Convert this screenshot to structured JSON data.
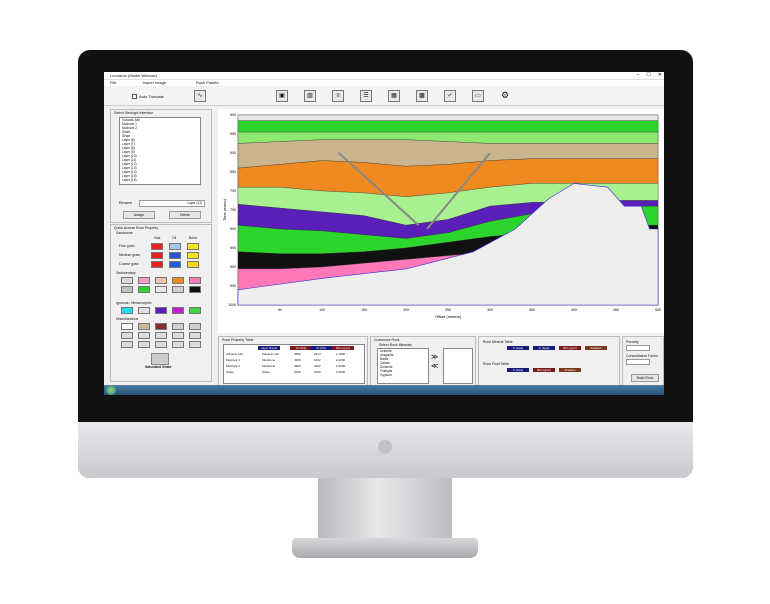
{
  "window": {
    "title": "Leonardo (Model Window)",
    "min": "–",
    "max": "☐",
    "close": "✕"
  },
  "menu": [
    "File",
    "Import Image",
    "Rock Palette"
  ],
  "toolbar": {
    "auto_truncate_label": "Auto Truncate",
    "icons": [
      "wave-icon",
      "image-icon",
      "image-edit-icon",
      "layers-icon",
      "table-icon",
      "grid-icon",
      "photo-icon",
      "chart-check-icon",
      "window-icon",
      "gear-icon"
    ]
  },
  "left_panel": {
    "interfaces_label": "Select Geologic Interface",
    "interfaces": [
      "Volcanic Ash",
      "Mudrock 1",
      "Mudrock 2",
      "Shale",
      "Shale",
      "Layer (8)",
      "Layer (7)",
      "Layer (8)",
      "Layer (9)",
      "Layer (10)",
      "Layer (11)",
      "Layer (12)",
      "Layer (13)",
      "Layer (14)",
      "Layer (15)",
      "Layer (16)",
      "Layer (17)"
    ],
    "rename_label": "Rename",
    "rename_value": "Layer (13)",
    "assign_label": "Assign",
    "delete_label": "Delete",
    "quick_access_label": "Quick Access Rock Property",
    "sandstone_label": "Sandstone",
    "col_headers": [
      "Gas",
      "Oil",
      "Brine"
    ],
    "rows": [
      {
        "label": "Fine grain",
        "colors": [
          "#e8231f",
          "#9ec8ec",
          "#f2e51e"
        ]
      },
      {
        "label": "Medium grain",
        "colors": [
          "#e8231f",
          "#2b4fd6",
          "#f2e51e"
        ]
      },
      {
        "label": "Coarse grain",
        "colors": [
          "#e8231f",
          "#1f5de0",
          "#ffd21f"
        ]
      }
    ],
    "sedimentary_label": "Sedimentary",
    "sedimentary": [
      [
        "#d9d9d9",
        "#f2a0c8",
        "#e8c8a8",
        "#f08a20",
        "#ff79b8"
      ],
      [
        "#c0c0c0",
        "#2cd52c",
        "#e8e8e8",
        "#d0d0d0",
        "#111111"
      ]
    ],
    "igneous_label": "Igneous / Metamorphic",
    "igneous": [
      [
        "#1fe0f0",
        "#e0e0e0",
        "#5a1fb8",
        "#c01fd0",
        "#38d838"
      ]
    ],
    "misc_label": "Miscellaneous",
    "misc": [
      [
        "#ffffff",
        "#c8b898",
        "#8a2a2a",
        "#d0d0d0",
        "#d0d0d0"
      ]
    ],
    "saturated_label": "Saturated Shale"
  },
  "chart_data": {
    "type": "area",
    "title": "",
    "xlabel": "Offset (meters)",
    "ylabel": "Time (msec)",
    "xlim": [
      0,
      500
    ],
    "ylim": [
      500,
      1000
    ],
    "x_ticks": [
      50,
      100,
      150,
      200,
      250,
      300,
      350,
      400,
      450,
      500
    ],
    "y_ticks": [
      500,
      550,
      600,
      650,
      700,
      750,
      800,
      850,
      900,
      950,
      1000
    ],
    "layers": [
      {
        "color": "#e8e8e8",
        "top": [
          500,
          500,
          500,
          500,
          500,
          500,
          500,
          500,
          500,
          500,
          500
        ]
      },
      {
        "color": "#2cd52c",
        "top": [
          515,
          515,
          515,
          515,
          515,
          515,
          515,
          515,
          515,
          515,
          515
        ]
      },
      {
        "color": "#8ee870",
        "top": [
          545,
          545,
          545,
          545,
          545,
          545,
          545,
          545,
          545,
          545,
          545
        ]
      },
      {
        "color": "#c9b48e",
        "top": [
          575,
          570,
          565,
          565,
          565,
          570,
          575,
          575,
          575,
          575,
          575
        ]
      },
      {
        "color": "#f08a20",
        "top": [
          640,
          630,
          620,
          625,
          635,
          630,
          620,
          615,
          615,
          615,
          615
        ]
      },
      {
        "color": "#a8f090",
        "top": [
          690,
          690,
          700,
          705,
          715,
          705,
          690,
          680,
          680,
          680,
          680
        ]
      },
      {
        "color": "#5a1fb8",
        "top": [
          735,
          745,
          755,
          765,
          790,
          775,
          740,
          730,
          730,
          725,
          725
        ]
      },
      {
        "color": "#2cd52c",
        "top": [
          790,
          800,
          805,
          815,
          825,
          810,
          780,
          760,
          750,
          740,
          740
        ]
      },
      {
        "color": "#111111",
        "top": [
          860,
          865,
          865,
          860,
          850,
          835,
          820,
          810,
          800,
          790,
          790
        ]
      },
      {
        "color": "#ff79b8",
        "top": [
          905,
          905,
          900,
          890,
          880,
          870,
          860,
          850,
          840,
          830,
          830
        ]
      }
    ],
    "salt_body_color": "#eeeeee"
  },
  "bottom": {
    "rock_property_label": "Rock Property Table",
    "rp_headers": [
      "Layer Name",
      "Vp (ft/s)",
      "Vs (ft/s)",
      "Rho (g/cc)"
    ],
    "rp_header_colors": [
      "#1a1a7a",
      "#7a1a1a",
      "#1a1a7a",
      "#7a1a1a"
    ],
    "rp_rows": [
      [
        "Volcanic Ash",
        "Volcanic Ash",
        "4550",
        "4374",
        "1.7800"
      ],
      [
        "Mudrock 1",
        "Mudstone",
        "4900",
        "3262",
        "2.2000"
      ],
      [
        "Mudrock 2",
        "Mudstone",
        "4900",
        "3262",
        "2.2000"
      ],
      [
        "Shale",
        "Shale",
        "5240",
        "3360",
        "2.3000"
      ]
    ],
    "customize_label": "Customize Rock",
    "select_minerals_label": "Select Rock Minerals",
    "minerals": [
      "Ankerite",
      "Aragonite",
      "Barite",
      "Calcite",
      "Dolomite",
      "Feldspar",
      "Gypsum"
    ],
    "move_right": "≫",
    "move_left": "≪",
    "mineral_table_label": "Rock Mineral Table",
    "mineral_headers": [
      "K (Gpa)",
      "G (Gpa)",
      "Rho (g/cc)",
      "Fraction"
    ],
    "mineral_header_colors": [
      "#1a1a7a",
      "#1a1a7a",
      "#7a1a1a",
      "#7a3a1a"
    ],
    "fluid_table_label": "Rock Fluid Table",
    "fluid_headers": [
      "K (Gpa)",
      "Rho (g/cc)",
      "Fraction"
    ],
    "fluid_header_colors": [
      "#1a1a7a",
      "#7a1a1a",
      "#7a3a1a"
    ],
    "porosity_label": "Porosity",
    "consolidation_label": "Consolidation Factor",
    "build_label": "Build Rock"
  },
  "taskbar": {
    "clock": ""
  }
}
